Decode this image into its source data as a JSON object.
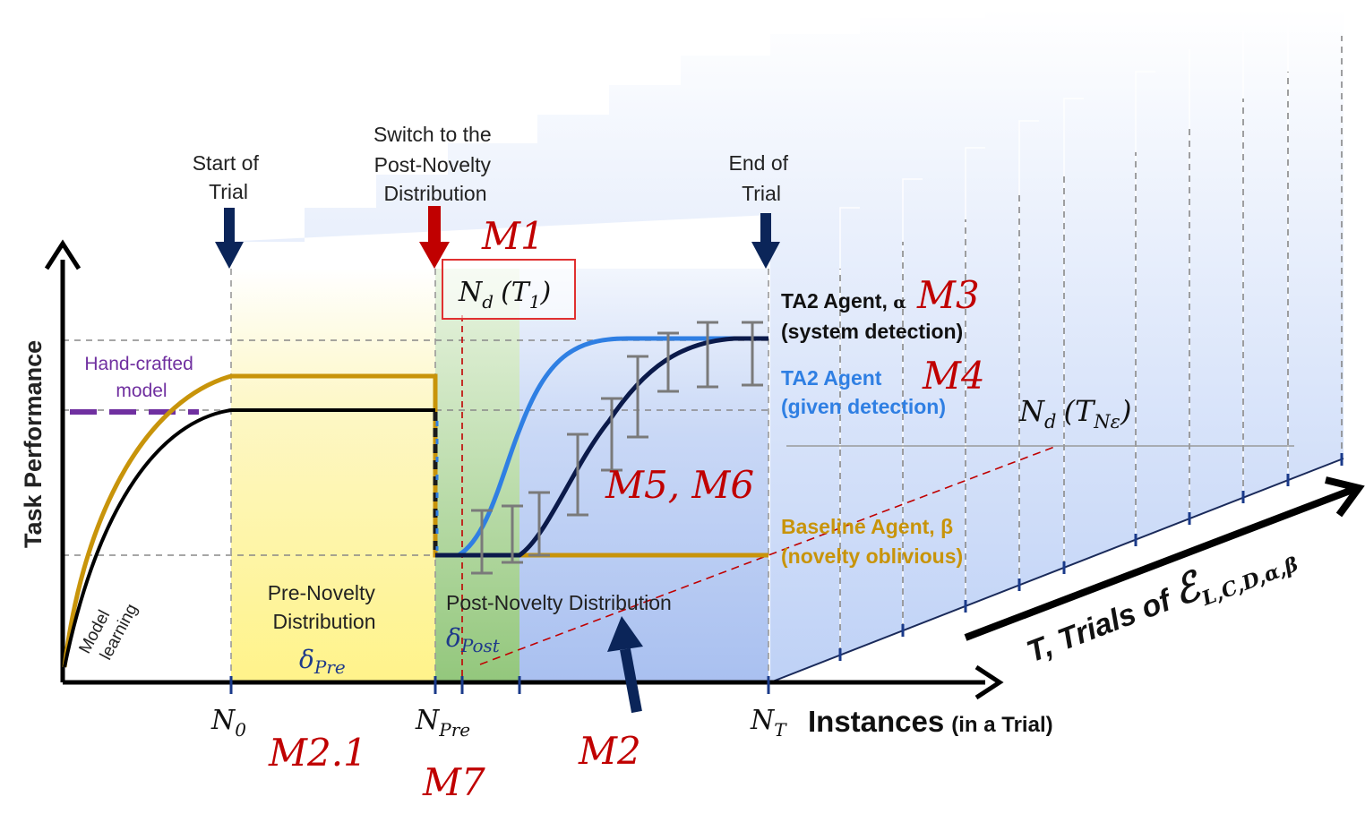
{
  "colors": {
    "pre_region": "#fff7a8",
    "post_green": "#9ccf86",
    "post_blue": "#b9ccf3",
    "baseline": "#c8940a",
    "ta2_system": "#0b1a4a",
    "ta2_given": "#2f7fe3",
    "hand_crafted": "#7030a0",
    "metric_red": "#c00000",
    "arrow_navy": "#0b2559",
    "arrow_red": "#c00000"
  },
  "annotations": {
    "start_of_trial": [
      "Start of",
      "Trial"
    ],
    "switch": [
      "Switch to the",
      "Post-Novelty",
      "Distribution"
    ],
    "end_of_trial": [
      "End of",
      "Trial"
    ]
  },
  "axes": {
    "y_label": "Task Performance",
    "x_label": "Instances",
    "x_label_suffix": "(in a Trial)",
    "z_label_prefix": "T, Trials of",
    "z_label_symbol": "ℰ",
    "z_label_subscript": "L,C,D,α,β"
  },
  "ticks": {
    "n0": {
      "base": "N",
      "sub": "0"
    },
    "npre": {
      "base": "N",
      "sub": "Pre"
    },
    "nt": {
      "base": "N",
      "sub": "T"
    }
  },
  "curves": {
    "hand_crafted": [
      "Hand-crafted",
      "model"
    ],
    "model_learning": [
      "Model",
      "learning"
    ]
  },
  "regions": {
    "pre": {
      "lines": [
        "Pre-Novelty",
        "Distribution"
      ],
      "delta": "δ",
      "delta_sub": "Pre"
    },
    "post": {
      "line": "Post-Novelty Distribution",
      "delta": "δ",
      "delta_sub": "Post"
    }
  },
  "legend": {
    "ta2_system": {
      "line1": "TA2 Agent,",
      "symbol": "α",
      "line2": "(system detection)"
    },
    "ta2_given": {
      "line1": "TA2 Agent",
      "line2": "(given detection)"
    },
    "baseline": {
      "line1": "Baseline Agent, β",
      "line2": "(novelty oblivious)"
    }
  },
  "detection": {
    "nd_t1": {
      "base": "N",
      "sub": "d",
      "arg": "(T",
      "arg_sub": "1",
      "close": ")"
    },
    "nd_tne": {
      "base": "N",
      "sub": "d",
      "arg": "(T",
      "arg_sub": "Nε",
      "close": ")"
    }
  },
  "metrics": {
    "m1": "M1",
    "m2": "M2",
    "m2_1": "M2.1",
    "m3": "M3",
    "m4": "M4",
    "m5_m6": "M5, M6",
    "m7": "M7"
  }
}
